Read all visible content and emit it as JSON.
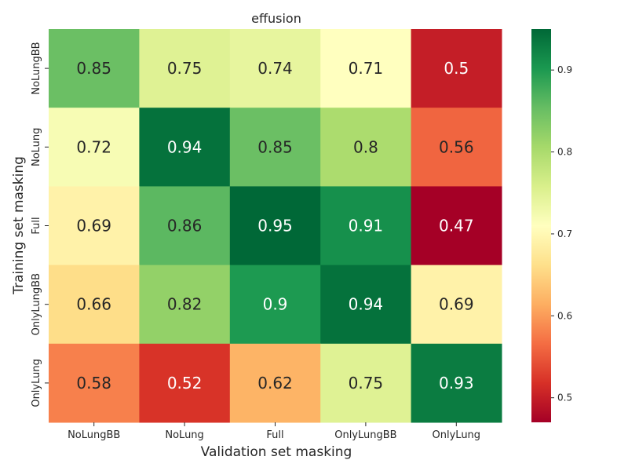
{
  "chart_data": {
    "type": "heatmap",
    "title": "effusion",
    "xlabel": "Validation set masking",
    "ylabel": "Training set masking",
    "x_categories": [
      "NoLungBB",
      "NoLung",
      "Full",
      "OnlyLungBB",
      "OnlyLung"
    ],
    "y_categories": [
      "NoLungBB",
      "NoLung",
      "Full",
      "OnlyLungBB",
      "OnlyLung"
    ],
    "values": [
      [
        0.85,
        0.75,
        0.74,
        0.71,
        0.5
      ],
      [
        0.72,
        0.94,
        0.85,
        0.8,
        0.56
      ],
      [
        0.69,
        0.86,
        0.95,
        0.91,
        0.47
      ],
      [
        0.66,
        0.82,
        0.9,
        0.94,
        0.69
      ],
      [
        0.58,
        0.52,
        0.62,
        0.75,
        0.93
      ]
    ],
    "value_labels": [
      [
        "0.85",
        "0.75",
        "0.74",
        "0.71",
        "0.5"
      ],
      [
        "0.72",
        "0.94",
        "0.85",
        "0.8",
        "0.56"
      ],
      [
        "0.69",
        "0.86",
        "0.95",
        "0.91",
        "0.47"
      ],
      [
        "0.66",
        "0.82",
        "0.9",
        "0.94",
        "0.69"
      ],
      [
        "0.58",
        "0.52",
        "0.62",
        "0.75",
        "0.93"
      ]
    ],
    "colormap": "RdYlGn",
    "color_range": [
      0.47,
      0.95
    ],
    "colorbar_ticks": [
      "0.5",
      "0.6",
      "0.7",
      "0.8",
      "0.9"
    ],
    "colorbar_tick_values": [
      0.5,
      0.6,
      0.7,
      0.8,
      0.9
    ],
    "grid": false,
    "legend": "colorbar-right"
  }
}
